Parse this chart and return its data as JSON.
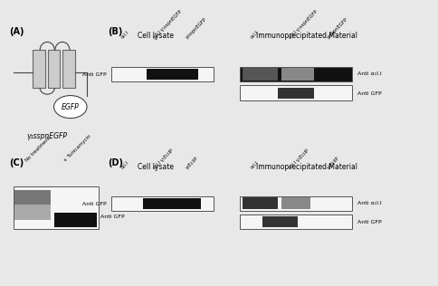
{
  "bg_color": "#e8e8e8",
  "label_A": "(A)",
  "label_B": "(B)",
  "label_C": "(C)",
  "label_D": "(D)",
  "egfp_label": "EGFP",
  "construct_label": "γ₁sspnEGFP",
  "cell_lysate": "Cell lysate",
  "immuno_material": "Immunoprecipitated Material",
  "anti_gfp": "Anti GFP",
  "anti_a1_1": "Anti α₁l.l",
  "col_labels_B": [
    "α₂l.l",
    "α₂l.l γ₁sspnEGFP",
    "γ₁sspnEGFP"
  ],
  "col_labels_D": [
    "α₂l.l",
    "α₂l.l γ₁EcilP",
    "γ₁EcilP"
  ],
  "no_treatment": "No treatment",
  "tunicamycin": "+ Tunicamycin"
}
